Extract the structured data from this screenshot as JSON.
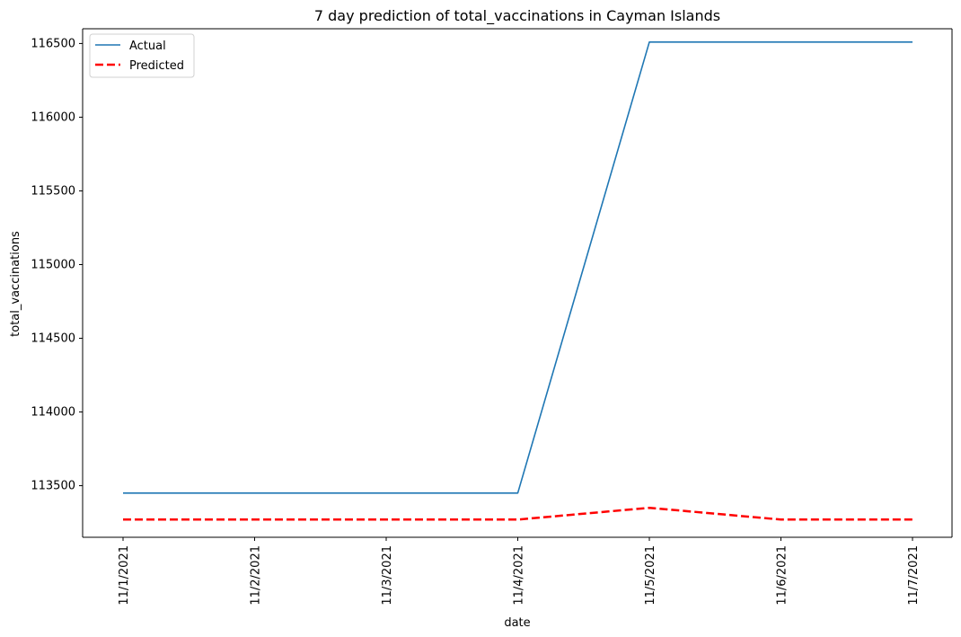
{
  "chart_data": {
    "type": "line",
    "title": "7 day prediction of total_vaccinations in Cayman Islands",
    "xlabel": "date",
    "ylabel": "total_vaccinations",
    "x": [
      "11/1/2021",
      "11/2/2021",
      "11/3/2021",
      "11/4/2021",
      "11/5/2021",
      "11/6/2021",
      "11/7/2021"
    ],
    "yticks": [
      113500,
      114000,
      114500,
      115000,
      115500,
      116000,
      116500
    ],
    "ylim": [
      113150,
      116600
    ],
    "grid": false,
    "legend_position": "top-left",
    "series": [
      {
        "name": "Actual",
        "color": "#1f77b4",
        "style": "solid",
        "values": [
          113450,
          113450,
          113450,
          113450,
          116510,
          116510,
          116510
        ]
      },
      {
        "name": "Predicted",
        "color": "#ff0000",
        "style": "dashed",
        "values": [
          113270,
          113270,
          113270,
          113270,
          113350,
          113270,
          113270
        ]
      }
    ]
  }
}
